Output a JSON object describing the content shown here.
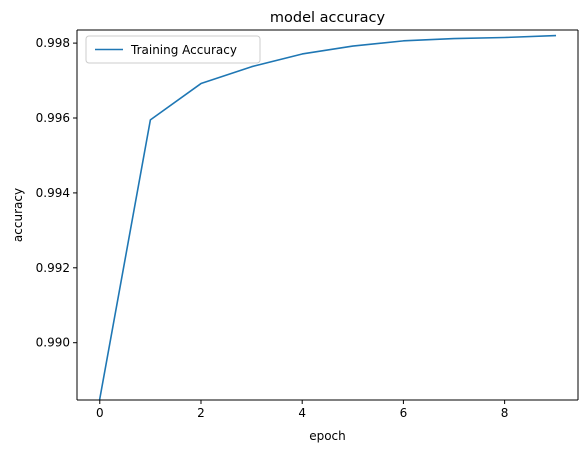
{
  "chart_data": {
    "type": "line",
    "title": "model accuracy",
    "xlabel": "epoch",
    "ylabel": "accuracy",
    "xlim": [
      -0.45,
      9.45
    ],
    "ylim": [
      0.98847,
      0.99835
    ],
    "xticks": [
      0,
      2,
      4,
      6,
      8
    ],
    "yticks": [
      0.99,
      0.992,
      0.994,
      0.996,
      0.998
    ],
    "xtick_labels": [
      "0",
      "2",
      "4",
      "6",
      "8"
    ],
    "ytick_labels": [
      "0.990",
      "0.992",
      "0.994",
      "0.996",
      "0.998"
    ],
    "grid": false,
    "legend_position": "upper-left",
    "series": [
      {
        "name": "Training Accuracy",
        "color": "#1f77b4",
        "x": [
          0,
          1,
          2,
          3,
          4,
          5,
          6,
          7,
          8,
          9
        ],
        "y": [
          0.9885,
          0.99595,
          0.99692,
          0.99737,
          0.99771,
          0.99792,
          0.99806,
          0.99812,
          0.99815,
          0.9982
        ]
      }
    ]
  }
}
